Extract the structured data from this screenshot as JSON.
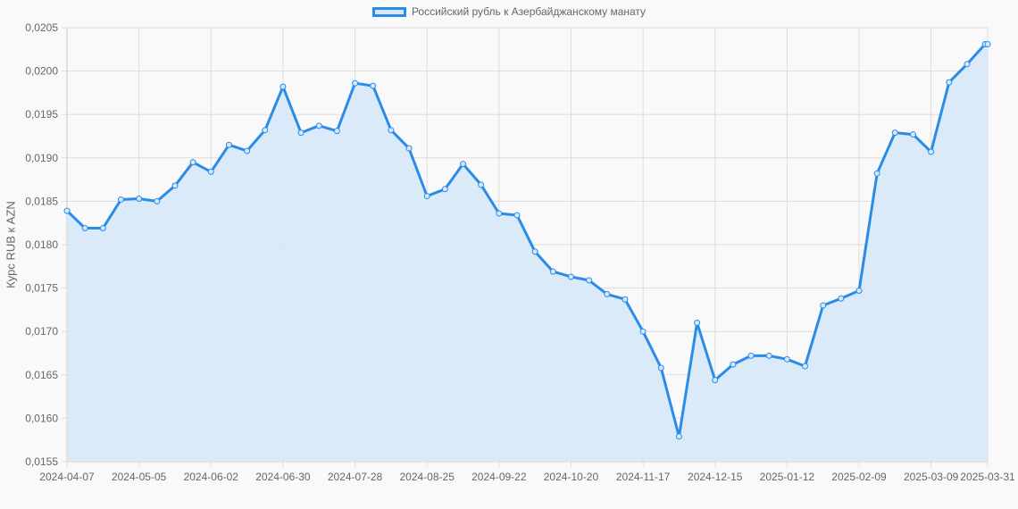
{
  "chart_data": {
    "type": "line",
    "title": "",
    "legend": {
      "position": "top",
      "entries": [
        "Российский рубль к Азербайджанскому манату"
      ]
    },
    "xlabel": "",
    "ylabel": "Курс RUB к AZN",
    "ylim": [
      0.0155,
      0.0205
    ],
    "grid": true,
    "fill": true,
    "colors": {
      "line": "#2a8ce8",
      "fill": "#d6e8f8",
      "grid": "#dddddd",
      "background": "#f9f9f9"
    },
    "y_ticks": [
      "0,0205",
      "0,0200",
      "0,0195",
      "0,0190",
      "0,0185",
      "0,0180",
      "0,0175",
      "0,0170",
      "0,0165",
      "0,0160",
      "0,0155"
    ],
    "x_ticks": [
      "2024-04-07",
      "2024-05-05",
      "2024-06-02",
      "2024-06-30",
      "2024-07-28",
      "2024-08-25",
      "2024-09-22",
      "2024-10-20",
      "2024-11-17",
      "2024-12-15",
      "2025-01-12",
      "2025-02-09",
      "2025-03-09",
      "2025-03-31"
    ],
    "x": [
      "2024-04-07",
      "2024-04-14",
      "2024-04-21",
      "2024-04-28",
      "2024-05-05",
      "2024-05-12",
      "2024-05-19",
      "2024-05-26",
      "2024-06-02",
      "2024-06-09",
      "2024-06-16",
      "2024-06-23",
      "2024-06-30",
      "2024-07-07",
      "2024-07-14",
      "2024-07-21",
      "2024-07-28",
      "2024-08-04",
      "2024-08-11",
      "2024-08-18",
      "2024-08-25",
      "2024-09-01",
      "2024-09-08",
      "2024-09-15",
      "2024-09-22",
      "2024-09-29",
      "2024-10-06",
      "2024-10-13",
      "2024-10-20",
      "2024-10-27",
      "2024-11-03",
      "2024-11-10",
      "2024-11-17",
      "2024-11-24",
      "2024-12-01",
      "2024-12-08",
      "2024-12-15",
      "2024-12-22",
      "2024-12-29",
      "2025-01-05",
      "2025-01-12",
      "2025-01-19",
      "2025-01-26",
      "2025-02-02",
      "2025-02-09",
      "2025-02-16",
      "2025-02-23",
      "2025-03-02",
      "2025-03-09",
      "2025-03-16",
      "2025-03-23",
      "2025-03-30",
      "2025-03-31"
    ],
    "series": [
      {
        "name": "Российский рубль к Азербайджанскому манату",
        "values": [
          0.01839,
          0.01819,
          0.01819,
          0.01852,
          0.01853,
          0.0185,
          0.01868,
          0.01895,
          0.01884,
          0.01915,
          0.01908,
          0.01932,
          0.01982,
          0.01929,
          0.01937,
          0.01931,
          0.01986,
          0.01983,
          0.01932,
          0.01911,
          0.01856,
          0.01864,
          0.01893,
          0.01869,
          0.01836,
          0.01834,
          0.01792,
          0.01769,
          0.01763,
          0.01759,
          0.01743,
          0.01737,
          0.017,
          0.01658,
          0.01579,
          0.0171,
          0.01644,
          0.01662,
          0.01672,
          0.01672,
          0.01668,
          0.0166,
          0.0173,
          0.01738,
          0.01747,
          0.01882,
          0.01929,
          0.01927,
          0.01907,
          0.01987,
          0.02008,
          0.02031,
          0.02031
        ]
      }
    ]
  }
}
